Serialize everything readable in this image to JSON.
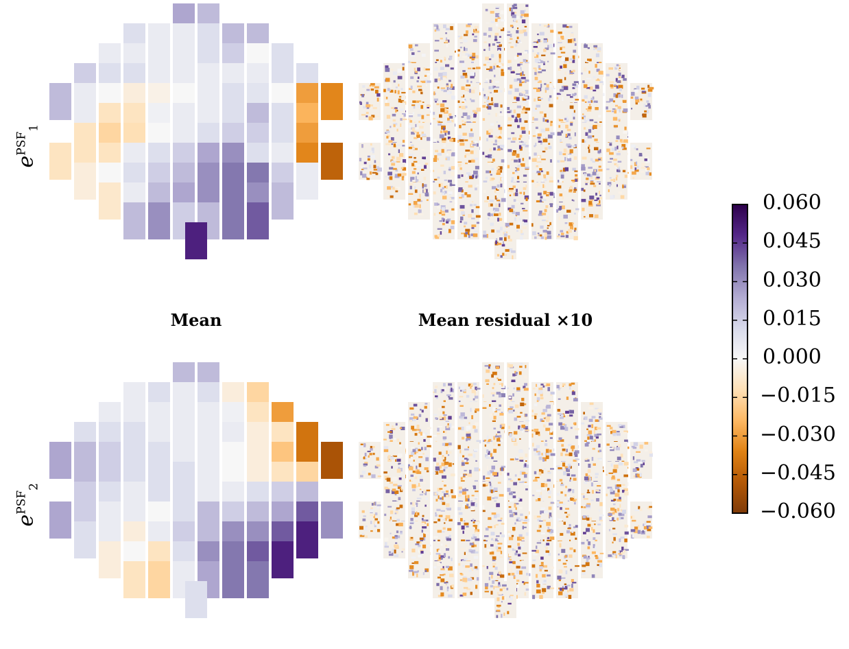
{
  "chart_data": {
    "type": "heatmap",
    "description_panels": [
      {
        "row": "e1",
        "column": "mean"
      },
      {
        "row": "e1",
        "column": "mean_residual"
      },
      {
        "row": "e2",
        "column": "mean"
      },
      {
        "row": "e2",
        "column": "mean_residual"
      }
    ],
    "row_labels": [
      {
        "base": "e",
        "sup": "PSF",
        "sub": "1"
      },
      {
        "base": "e",
        "sup": "PSF",
        "sub": "2"
      }
    ],
    "column_titles": [
      "Mean",
      "Mean residual ×10"
    ],
    "colorbar": {
      "min": -0.06,
      "max": 0.06,
      "ticks": [
        "0.060",
        "0.045",
        "0.030",
        "0.015",
        "0.000",
        "−0.015",
        "−0.030",
        "−0.045",
        "−0.060"
      ],
      "colormap": "PuOr",
      "colors": [
        "#2d004b",
        "#542788",
        "#8073ac",
        "#b2abd2",
        "#d8daeb",
        "#f7f7f7",
        "#fee0b6",
        "#fdb863",
        "#e08214",
        "#b35806",
        "#7f3b08"
      ]
    },
    "ccd_rows": [
      {
        "cols": [
          -1.0,
          0.0
        ]
      },
      {
        "cols": [
          -3.0,
          -2.0,
          -1.0,
          0.0,
          1.0,
          2.0
        ]
      },
      {
        "cols": [
          -4.0,
          -3.0,
          -2.0,
          -1.0,
          0.0,
          1.0,
          2.0,
          3.0
        ]
      },
      {
        "cols": [
          -5.0,
          -4.0,
          -3.0,
          -2.0,
          -1.0,
          0.0,
          1.0,
          2.0,
          3.0,
          4.0
        ]
      },
      {
        "cols": [
          -6.0,
          -5.0,
          -4.0,
          -3.0,
          -2.0,
          -1.0,
          0.0,
          1.0,
          2.0,
          3.0,
          4.0,
          5.0
        ]
      },
      {
        "cols": [
          -5.0,
          -4.0,
          -3.0,
          -2.0,
          -1.0,
          0.0,
          1.0,
          2.0,
          3.0,
          4.0
        ]
      },
      {
        "cols": [
          -5.0,
          -4.0,
          -3.0,
          -2.0,
          -1.0,
          0.0,
          1.0,
          2.0,
          3.0,
          4.0
        ]
      },
      {
        "cols": [
          -6.0,
          -5.0,
          -4.0,
          -3.0,
          -2.0,
          -1.0,
          0.0,
          1.0,
          2.0,
          3.0,
          4.0,
          5.0
        ]
      },
      {
        "cols": [
          -5.0,
          -4.0,
          -3.0,
          -2.0,
          -1.0,
          0.0,
          1.0,
          2.0,
          3.0,
          4.0
        ]
      },
      {
        "cols": [
          -4.0,
          -3.0,
          -2.0,
          -1.0,
          0.0,
          1.0,
          2.0,
          3.0
        ]
      },
      {
        "cols": [
          -3.0,
          -2.0,
          -1.0,
          0.0,
          1.0,
          2.0
        ]
      },
      {
        "cols": [
          -0.5
        ]
      }
    ],
    "e1_mean": [
      [
        0.025,
        0.02
      ],
      [
        0.01,
        0.005,
        0.005,
        0.01,
        0.02,
        0.02
      ],
      [
        0.005,
        0.005,
        0.005,
        0.005,
        0.01,
        0.015,
        0.0,
        0.01
      ],
      [
        0.015,
        0.01,
        0.01,
        0.005,
        0.005,
        0.005,
        0.005,
        0.005,
        0.01,
        0.01
      ],
      [
        0.02,
        0.005,
        0.0,
        -0.005,
        -0.003,
        0.0,
        0.005,
        0.01,
        0.008,
        0.0,
        -0.03,
        -0.035
      ],
      [
        0.005,
        -0.01,
        -0.01,
        0.003,
        0.005,
        0.005,
        0.01,
        0.02,
        0.01,
        -0.025
      ],
      [
        -0.01,
        -0.015,
        -0.012,
        0.0,
        0.005,
        0.01,
        0.015,
        0.015,
        0.01,
        -0.03
      ],
      [
        -0.01,
        -0.01,
        -0.01,
        0.005,
        0.01,
        0.015,
        0.025,
        0.03,
        0.01,
        0.005,
        -0.035,
        -0.045
      ],
      [
        -0.005,
        0.0,
        0.01,
        0.015,
        0.02,
        0.03,
        0.035,
        0.035,
        0.015,
        0.005
      ],
      [
        -0.008,
        0.005,
        0.02,
        0.025,
        0.03,
        0.035,
        0.03,
        0.02
      ],
      [
        0.02,
        0.03,
        0.015,
        0.02,
        0.035,
        0.04
      ],
      [
        0.05
      ]
    ],
    "e2_mean": [
      [
        0.02,
        0.02
      ],
      [
        0.005,
        0.01,
        0.005,
        0.01,
        -0.005,
        -0.015
      ],
      [
        0.005,
        0.005,
        0.005,
        0.005,
        0.005,
        0.003,
        -0.01,
        -0.03
      ],
      [
        0.01,
        0.01,
        0.01,
        0.005,
        0.005,
        0.005,
        0.005,
        -0.005,
        -0.01,
        -0.04
      ],
      [
        0.025,
        0.02,
        0.015,
        0.01,
        0.01,
        0.005,
        0.005,
        0.0,
        -0.005,
        -0.02,
        -0.04,
        -0.05
      ],
      [
        0.02,
        0.015,
        0.01,
        0.01,
        0.01,
        0.005,
        0.0,
        -0.005,
        -0.01,
        -0.015
      ],
      [
        0.015,
        0.01,
        0.005,
        0.01,
        0.01,
        0.005,
        0.005,
        0.01,
        0.015,
        0.02
      ],
      [
        0.025,
        0.015,
        0.005,
        0.005,
        0.0,
        0.01,
        0.02,
        0.015,
        0.02,
        0.025,
        0.04,
        0.03
      ],
      [
        0.01,
        0.005,
        -0.005,
        0.005,
        0.015,
        0.02,
        0.03,
        0.03,
        0.04,
        0.05
      ],
      [
        -0.005,
        0.0,
        -0.01,
        0.01,
        0.03,
        0.035,
        0.04,
        0.05
      ],
      [
        -0.01,
        -0.015,
        0.005,
        0.025,
        0.035,
        0.035
      ],
      [
        0.01
      ]
    ]
  }
}
